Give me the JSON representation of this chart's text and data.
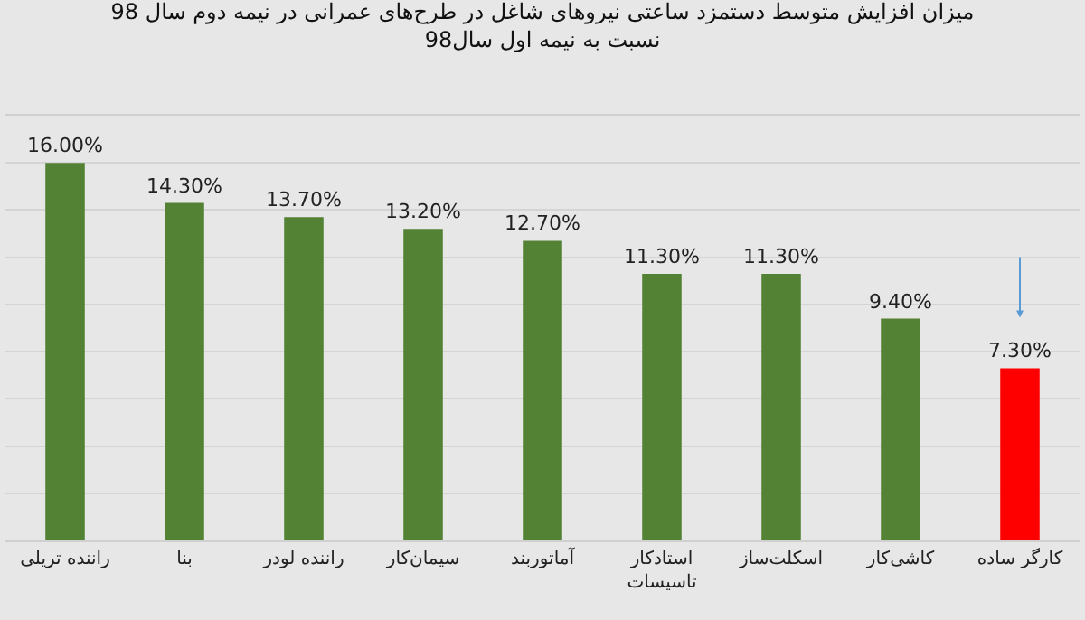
{
  "chart_data": {
    "type": "bar",
    "title": "میزان افزایش متوسط دستمزد ساعتی نیروهای شاغل در طرح‌های عمرانی در نیمه دوم سال 98\nنسبت به نیمه اول سال98",
    "categories": [
      "راننده تریلی",
      "بنا",
      "راننده لودر",
      "سیمان‌کار",
      "آماتوربند",
      "استادکار تاسیسات",
      "اسکلت‌ساز",
      "کاشی‌کار",
      "کارگر ساده"
    ],
    "values": [
      16.0,
      14.3,
      13.7,
      13.2,
      12.7,
      11.3,
      11.3,
      9.4,
      7.3
    ],
    "colors": [
      "#548235",
      "#548235",
      "#548235",
      "#548235",
      "#548235",
      "#548235",
      "#548235",
      "#548235",
      "#ff0000"
    ],
    "value_labels": [
      "16.00%",
      "14.30%",
      "13.70%",
      "13.20%",
      "12.70%",
      "11.30%",
      "11.30%",
      "9.40%",
      "7.30%"
    ],
    "ylim": [
      0,
      18
    ],
    "yticks": [
      {
        "value": 0,
        "label": null
      },
      {
        "value": 2,
        "label": null
      },
      {
        "value": 4,
        "label": null
      },
      {
        "value": 6,
        "label": null
      },
      {
        "value": 8,
        "label": null
      },
      {
        "value": 10,
        "label": null
      },
      {
        "value": 12,
        "label": null
      },
      {
        "value": 14,
        "label": null
      },
      {
        "value": 16,
        "label": null
      },
      {
        "value": 18,
        "label": null
      }
    ],
    "tick_labels": "x",
    "grid": "y",
    "legend": false
  }
}
